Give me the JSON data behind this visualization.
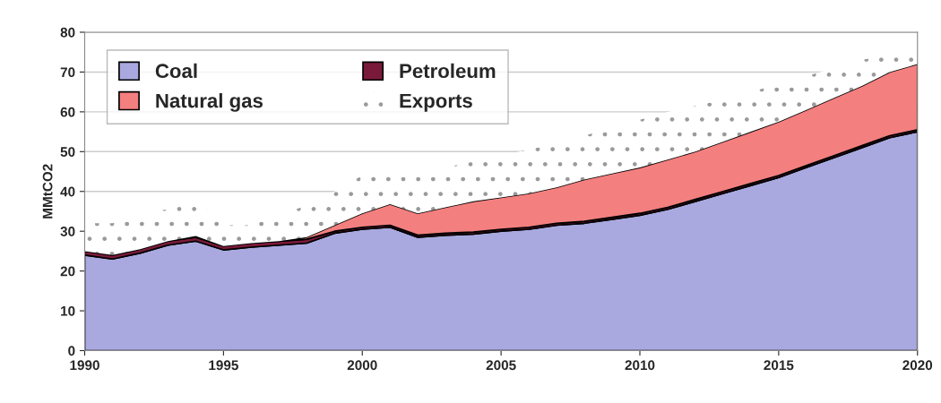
{
  "chart_data": {
    "type": "area",
    "stacked": true,
    "ylabel": "MMtCO2",
    "x": [
      1990,
      1991,
      1992,
      1993,
      1994,
      1995,
      1996,
      1997,
      1998,
      1999,
      2000,
      2001,
      2002,
      2003,
      2004,
      2005,
      2006,
      2007,
      2008,
      2009,
      2010,
      2011,
      2012,
      2013,
      2014,
      2015,
      2016,
      2017,
      2018,
      2019,
      2020
    ],
    "series": [
      {
        "name": "Coal",
        "color": "#a9a9e0",
        "values": [
          24,
          23,
          24.5,
          26.5,
          27.5,
          25.3,
          26,
          26.5,
          27,
          29.5,
          30.5,
          31,
          28.5,
          29,
          29.3,
          30,
          30.5,
          31.5,
          32,
          33,
          34,
          35.5,
          37.5,
          39.5,
          41.5,
          43.5,
          46,
          48.5,
          51,
          53.5,
          55
        ]
      },
      {
        "name": "Petroleum",
        "color": "#7a1a3a",
        "values": [
          1,
          1,
          1,
          1,
          1,
          1,
          1,
          1,
          1,
          0.5,
          0.5,
          0.5,
          0.5,
          0.5,
          0.5,
          0.5,
          0.5,
          0.5,
          0.5,
          0.5,
          0.5,
          0.5,
          0.5,
          0.5,
          0.5,
          0.5,
          0.5,
          0.5,
          0.5,
          0.5,
          0.5
        ]
      },
      {
        "name": "Natural gas",
        "color": "#f47f7f",
        "values": [
          0,
          0,
          0,
          0,
          0.3,
          0,
          0,
          0,
          0.5,
          1.5,
          3.5,
          5.3,
          5.5,
          6.5,
          7.7,
          8,
          8.5,
          9,
          10.5,
          11,
          11.5,
          12,
          12,
          12.5,
          13,
          13.5,
          14,
          14.5,
          15,
          16,
          16.5
        ]
      },
      {
        "name": "Exports",
        "color": "#ffffff",
        "values": [
          7,
          8,
          9,
          8,
          9.2,
          5.2,
          4.5,
          6.5,
          8,
          8.5,
          9.5,
          9.2,
          10.5,
          10,
          10,
          10.5,
          11,
          11,
          11,
          11.5,
          12,
          12,
          11.5,
          10.5,
          10,
          9.5,
          8.5,
          7.5,
          6.5,
          4.5,
          4
        ]
      }
    ],
    "xlim": [
      1990,
      2020
    ],
    "xticks": [
      1990,
      1995,
      2000,
      2005,
      2010,
      2015,
      2020
    ],
    "ylim": [
      0,
      80
    ],
    "yticks": [
      0,
      10,
      20,
      30,
      40,
      50,
      60,
      70,
      80
    ],
    "grid": "y",
    "legend": "top left"
  }
}
